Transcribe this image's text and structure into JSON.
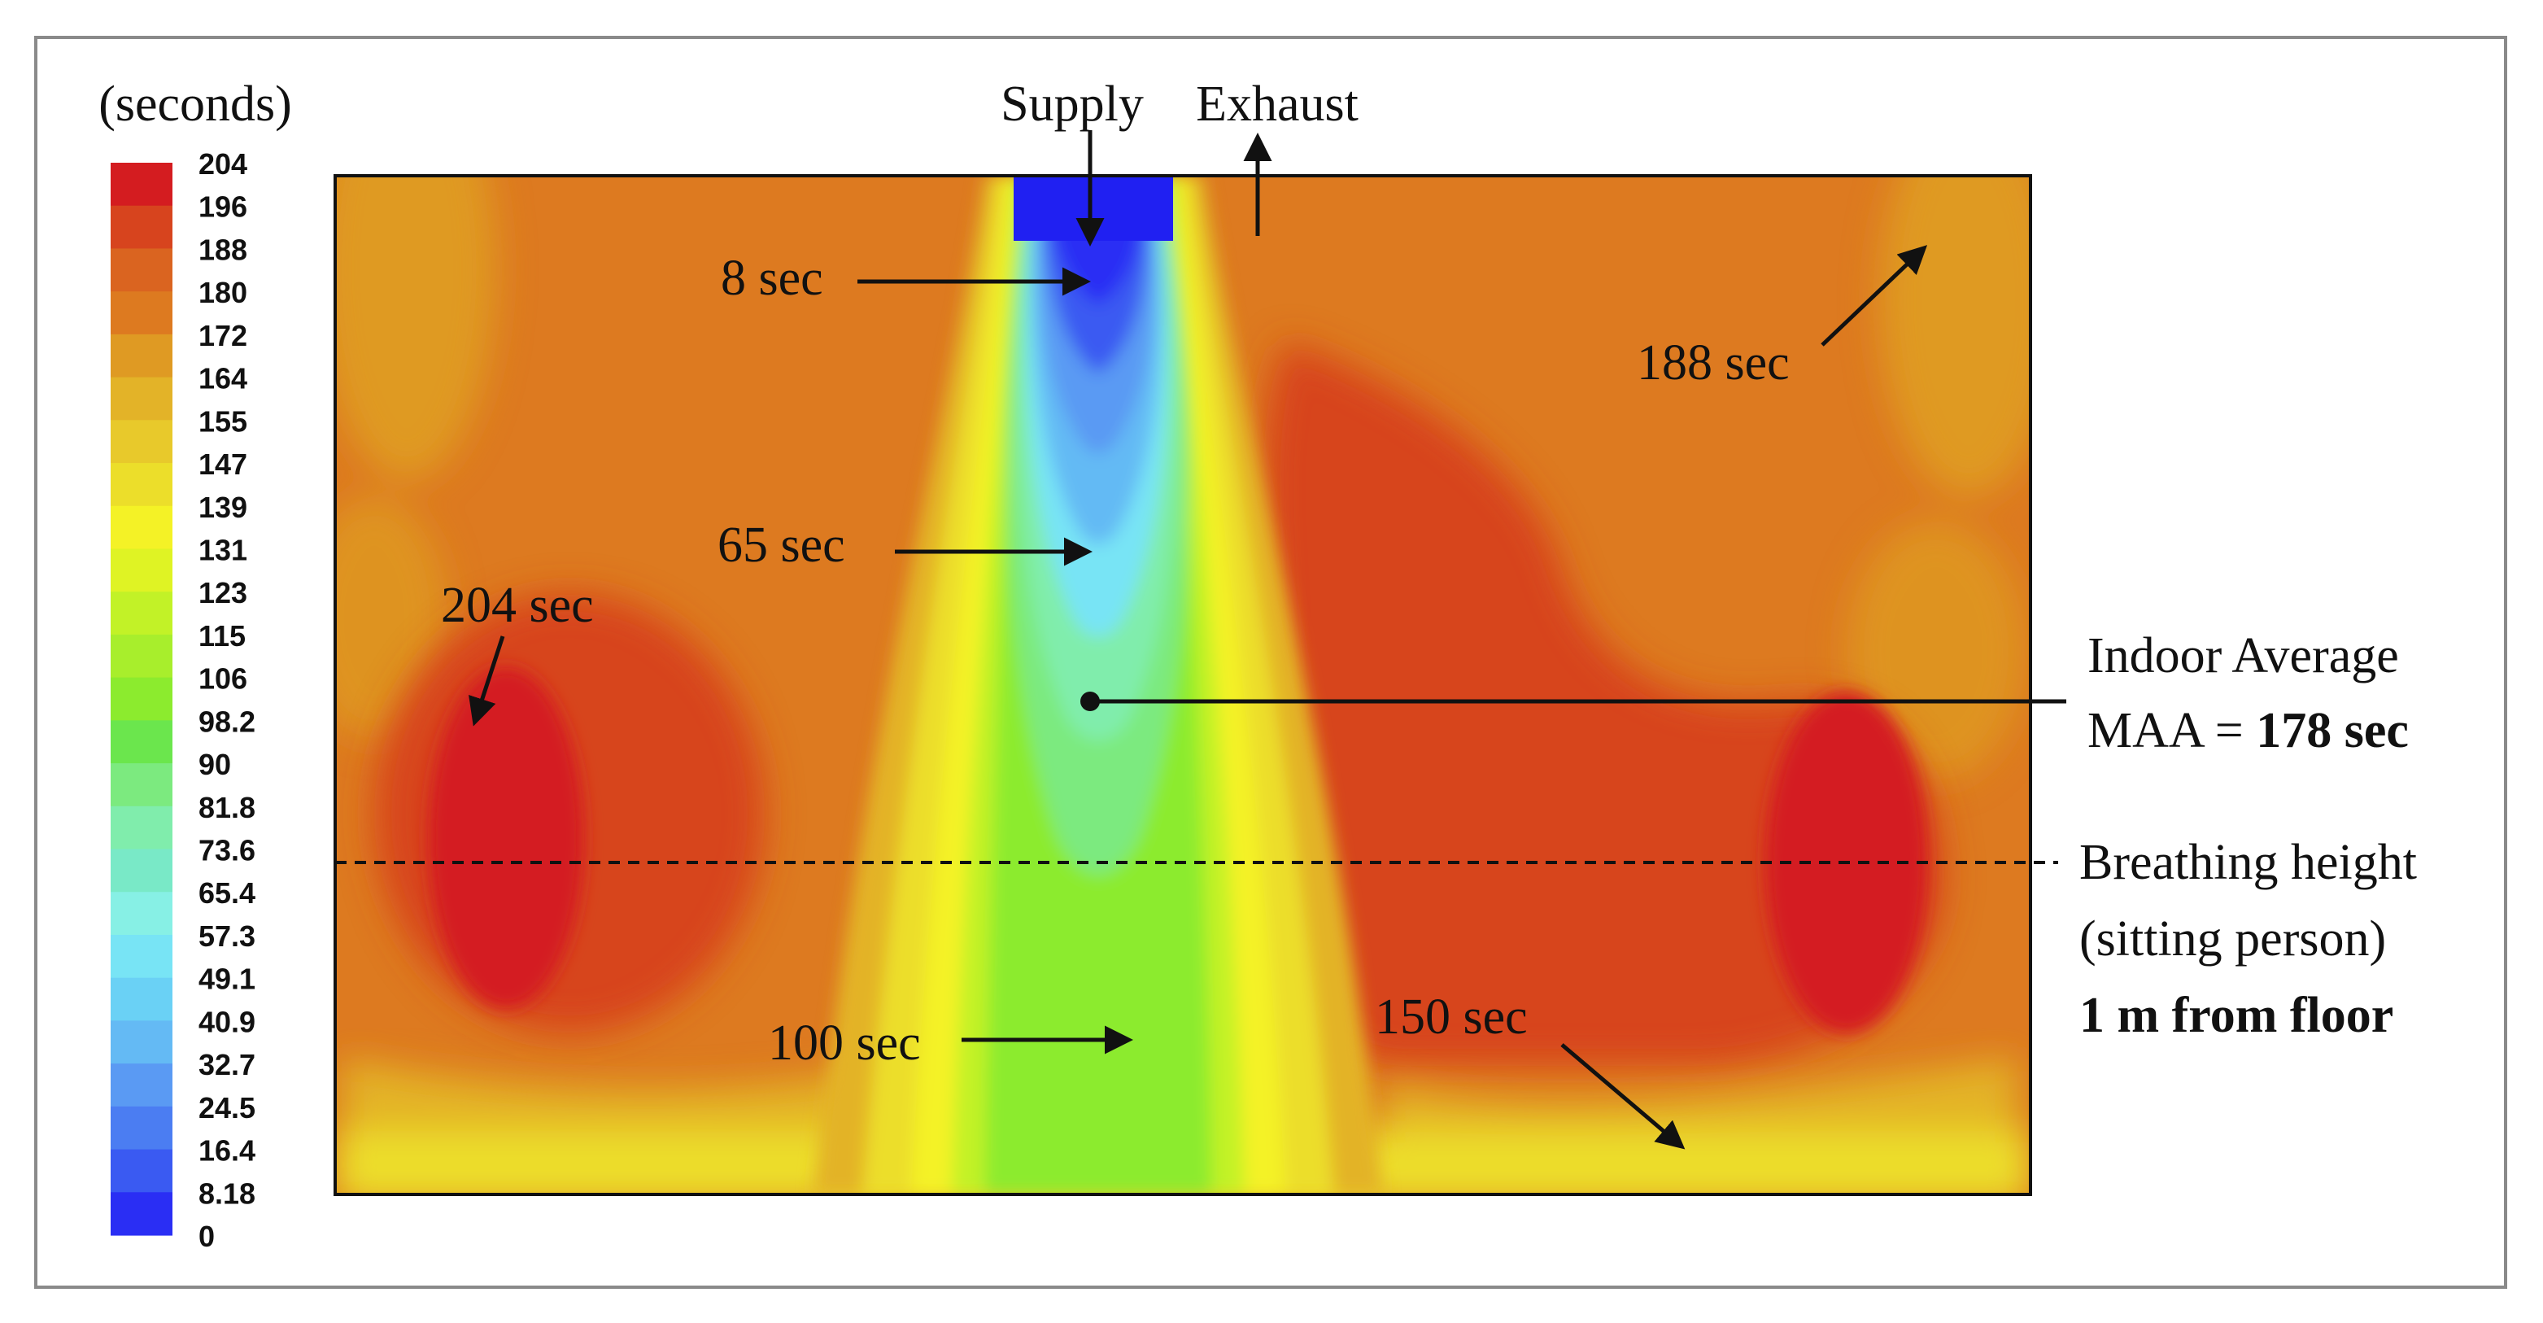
{
  "legend": {
    "unit_label": "(seconds)",
    "ticks": [
      "204",
      "196",
      "188",
      "180",
      "172",
      "164",
      "155",
      "147",
      "139",
      "131",
      "123",
      "115",
      "106",
      "98.2",
      "90",
      "81.8",
      "73.6",
      "65.4",
      "57.3",
      "49.1",
      "40.9",
      "32.7",
      "24.5",
      "16.4",
      "8.18",
      "0"
    ],
    "colors": [
      "#d41c20",
      "#d7441e",
      "#da6420",
      "#dd7a20",
      "#df9a23",
      "#e3b328",
      "#e8c92b",
      "#ecde2a",
      "#f4f226",
      "#dff324",
      "#c2f227",
      "#a8ee2c",
      "#8ceb2e",
      "#6be64d",
      "#7cea7f",
      "#80edac",
      "#79e9c7",
      "#87f0e5",
      "#78e4f5",
      "#6ad1f5",
      "#64baf4",
      "#5a9af3",
      "#4b7df2",
      "#3a5af2",
      "#2a2ef4"
    ]
  },
  "labels": {
    "supply": "Supply",
    "exhaust": "Exhaust",
    "s8": "8 sec",
    "s65": "65 sec",
    "s100": "100 sec",
    "s150": "150 sec",
    "s188": "188 sec",
    "s204": "204 sec",
    "indoor_line1": "Indoor  Average",
    "indoor_line2_prefix": "MAA = ",
    "indoor_line2_value": "178 sec",
    "breathing_line1": "Breathing height",
    "breathing_line2": "(sitting person)",
    "breathing_line3": "1 m from floor"
  }
}
